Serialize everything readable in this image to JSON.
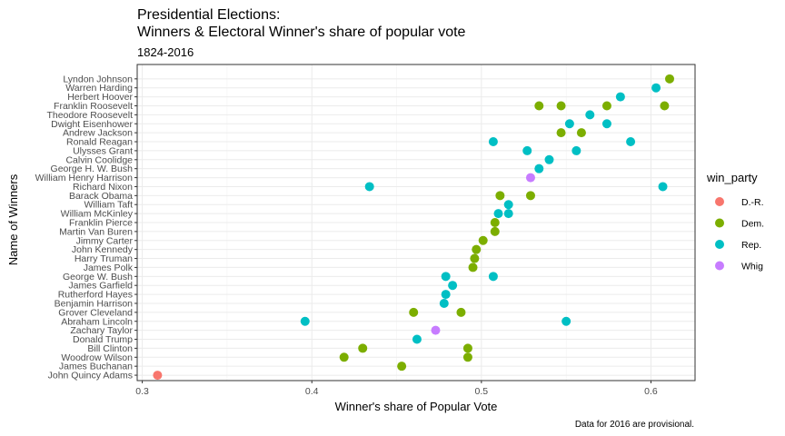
{
  "chart_data": {
    "type": "scatter",
    "title_line1": "Presidential Elections:",
    "title_line2": "Winners & Electoral Winner's share of popular vote",
    "subtitle": "1824-2016",
    "xlabel": "Winner's share of Popular Vote",
    "ylabel": "Name of Winners",
    "caption": "Data for 2016 are provisional.",
    "xlim": [
      0.297,
      0.626
    ],
    "x_ticks": [
      0.3,
      0.4,
      0.5,
      0.6
    ],
    "x_tick_labels": [
      "0.3",
      "0.4",
      "0.5",
      "0.6"
    ],
    "grid": true,
    "legend_position": "right",
    "legend": {
      "title": "win_party",
      "entries": [
        {
          "label": "D.-R.",
          "color": "#F8766D"
        },
        {
          "label": "Dem.",
          "color": "#7CAE00"
        },
        {
          "label": "Rep.",
          "color": "#00BFC4"
        },
        {
          "label": "Whig",
          "color": "#C77CFF"
        }
      ]
    },
    "categories": [
      "John Quincy Adams",
      "James Buchanan",
      "Woodrow Wilson",
      "Bill Clinton",
      "Donald Trump",
      "Zachary Taylor",
      "Abraham Lincoln",
      "Grover Cleveland",
      "Benjamin Harrison",
      "Rutherford Hayes",
      "James Garfield",
      "George W. Bush",
      "James Polk",
      "Harry Truman",
      "John Kennedy",
      "Jimmy Carter",
      "Martin Van Buren",
      "Franklin Pierce",
      "William McKinley",
      "William Taft",
      "Barack Obama",
      "Richard Nixon",
      "William Henry Harrison",
      "George H. W. Bush",
      "Calvin Coolidge",
      "Ulysses Grant",
      "Ronald Reagan",
      "Andrew Jackson",
      "Dwight Eisenhower",
      "Theodore Roosevelt",
      "Franklin Roosevelt",
      "Herbert Hoover",
      "Warren Harding",
      "Lyndon Johnson"
    ],
    "points": [
      {
        "name": "John Quincy Adams",
        "x": 0.309,
        "party": "D.-R."
      },
      {
        "name": "James Buchanan",
        "x": 0.453,
        "party": "Dem."
      },
      {
        "name": "Woodrow Wilson",
        "x": 0.419,
        "party": "Dem."
      },
      {
        "name": "Woodrow Wilson",
        "x": 0.492,
        "party": "Dem."
      },
      {
        "name": "Bill Clinton",
        "x": 0.43,
        "party": "Dem."
      },
      {
        "name": "Bill Clinton",
        "x": 0.492,
        "party": "Dem."
      },
      {
        "name": "Donald Trump",
        "x": 0.462,
        "party": "Rep."
      },
      {
        "name": "Zachary Taylor",
        "x": 0.473,
        "party": "Whig"
      },
      {
        "name": "Abraham Lincoln",
        "x": 0.396,
        "party": "Rep."
      },
      {
        "name": "Abraham Lincoln",
        "x": 0.55,
        "party": "Rep."
      },
      {
        "name": "Grover Cleveland",
        "x": 0.46,
        "party": "Dem."
      },
      {
        "name": "Grover Cleveland",
        "x": 0.488,
        "party": "Dem."
      },
      {
        "name": "Benjamin Harrison",
        "x": 0.478,
        "party": "Rep."
      },
      {
        "name": "Rutherford Hayes",
        "x": 0.479,
        "party": "Rep."
      },
      {
        "name": "James Garfield",
        "x": 0.483,
        "party": "Rep."
      },
      {
        "name": "George W. Bush",
        "x": 0.479,
        "party": "Rep."
      },
      {
        "name": "George W. Bush",
        "x": 0.507,
        "party": "Rep."
      },
      {
        "name": "James Polk",
        "x": 0.495,
        "party": "Dem."
      },
      {
        "name": "Harry Truman",
        "x": 0.496,
        "party": "Dem."
      },
      {
        "name": "John Kennedy",
        "x": 0.497,
        "party": "Dem."
      },
      {
        "name": "Jimmy Carter",
        "x": 0.501,
        "party": "Dem."
      },
      {
        "name": "Martin Van Buren",
        "x": 0.508,
        "party": "Dem."
      },
      {
        "name": "Franklin Pierce",
        "x": 0.508,
        "party": "Dem."
      },
      {
        "name": "William McKinley",
        "x": 0.51,
        "party": "Rep."
      },
      {
        "name": "William McKinley",
        "x": 0.516,
        "party": "Rep."
      },
      {
        "name": "William Taft",
        "x": 0.516,
        "party": "Rep."
      },
      {
        "name": "Barack Obama",
        "x": 0.511,
        "party": "Dem."
      },
      {
        "name": "Barack Obama",
        "x": 0.529,
        "party": "Dem."
      },
      {
        "name": "Richard Nixon",
        "x": 0.434,
        "party": "Rep."
      },
      {
        "name": "Richard Nixon",
        "x": 0.607,
        "party": "Rep."
      },
      {
        "name": "William Henry Harrison",
        "x": 0.529,
        "party": "Whig"
      },
      {
        "name": "George H. W. Bush",
        "x": 0.534,
        "party": "Rep."
      },
      {
        "name": "Calvin Coolidge",
        "x": 0.54,
        "party": "Rep."
      },
      {
        "name": "Ulysses Grant",
        "x": 0.527,
        "party": "Rep."
      },
      {
        "name": "Ulysses Grant",
        "x": 0.556,
        "party": "Rep."
      },
      {
        "name": "Ronald Reagan",
        "x": 0.507,
        "party": "Rep."
      },
      {
        "name": "Ronald Reagan",
        "x": 0.588,
        "party": "Rep."
      },
      {
        "name": "Andrew Jackson",
        "x": 0.547,
        "party": "Dem."
      },
      {
        "name": "Andrew Jackson",
        "x": 0.559,
        "party": "Dem."
      },
      {
        "name": "Dwight Eisenhower",
        "x": 0.552,
        "party": "Rep."
      },
      {
        "name": "Dwight Eisenhower",
        "x": 0.574,
        "party": "Rep."
      },
      {
        "name": "Theodore Roosevelt",
        "x": 0.564,
        "party": "Rep."
      },
      {
        "name": "Franklin Roosevelt",
        "x": 0.534,
        "party": "Dem."
      },
      {
        "name": "Franklin Roosevelt",
        "x": 0.547,
        "party": "Dem."
      },
      {
        "name": "Franklin Roosevelt",
        "x": 0.574,
        "party": "Dem."
      },
      {
        "name": "Franklin Roosevelt",
        "x": 0.608,
        "party": "Dem."
      },
      {
        "name": "Herbert Hoover",
        "x": 0.582,
        "party": "Rep."
      },
      {
        "name": "Warren Harding",
        "x": 0.603,
        "party": "Rep."
      },
      {
        "name": "Lyndon Johnson",
        "x": 0.611,
        "party": "Dem."
      }
    ]
  }
}
